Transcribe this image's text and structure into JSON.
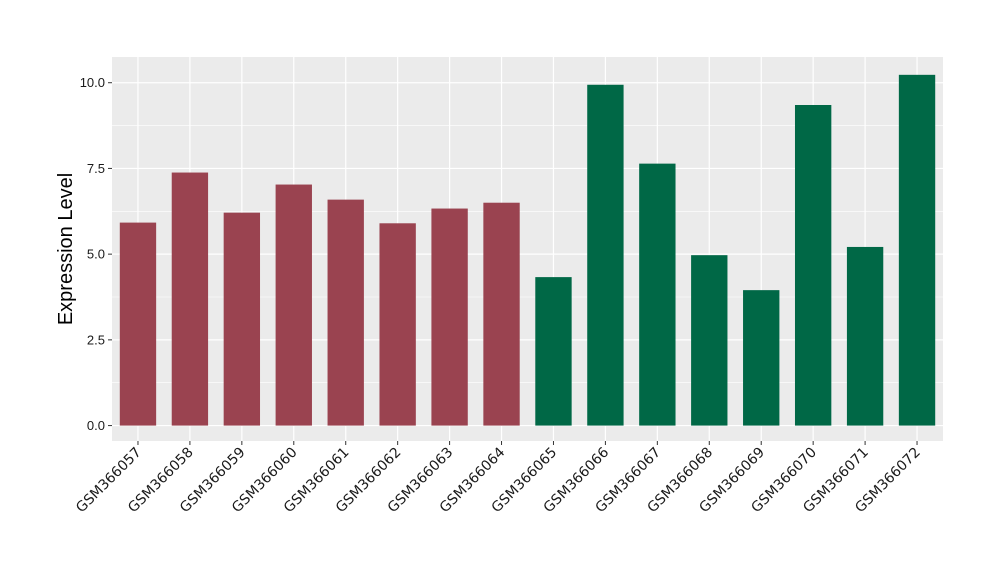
{
  "chart_data": {
    "type": "bar",
    "title": "",
    "xlabel": "",
    "ylabel": "Expression Level",
    "ylim": [
      -0.45,
      10.75
    ],
    "yticks": [
      "0.0",
      "2.5",
      "5.0",
      "7.5",
      "10.0"
    ],
    "ytick_values": [
      0,
      2.5,
      5,
      7.5,
      10
    ],
    "grid": true,
    "legend": "none",
    "categories": [
      "GSM366057",
      "GSM366058",
      "GSM366059",
      "GSM366060",
      "GSM366061",
      "GSM366062",
      "GSM366063",
      "GSM366064",
      "GSM366065",
      "GSM366066",
      "GSM366067",
      "GSM366068",
      "GSM366069",
      "GSM366070",
      "GSM366071",
      "GSM366072"
    ],
    "values": [
      5.92,
      7.38,
      6.21,
      7.03,
      6.59,
      5.9,
      6.33,
      6.5,
      4.33,
      9.94,
      7.64,
      4.97,
      3.95,
      9.35,
      5.21,
      10.23
    ],
    "bar_colors": [
      "#9A4350",
      "#9A4350",
      "#9A4350",
      "#9A4350",
      "#9A4350",
      "#9A4350",
      "#9A4350",
      "#9A4350",
      "#006846",
      "#006846",
      "#006846",
      "#006846",
      "#006846",
      "#006846",
      "#006846",
      "#006846"
    ],
    "colors": {
      "panel_bg": "#EBEBEB",
      "grid": "#FFFFFF",
      "group_1": "#9A4350",
      "group_2": "#006846"
    }
  }
}
